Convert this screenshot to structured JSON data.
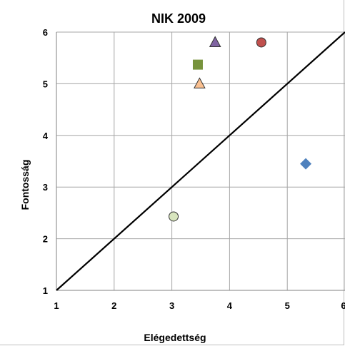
{
  "chart_data": {
    "type": "scatter",
    "title": "NIK 2009",
    "xlabel": "Elégedettség",
    "ylabel": "Fontosság",
    "xlim": [
      1,
      6
    ],
    "ylim": [
      1,
      6
    ],
    "xticks": [
      "1",
      "2",
      "3",
      "4",
      "5",
      "6"
    ],
    "yticks": [
      "1",
      "2",
      "3",
      "4",
      "5",
      "6"
    ],
    "grid": true,
    "points": [
      {
        "x": 5.32,
        "y": 3.45,
        "marker": "diamond",
        "color": "#4f81bd"
      },
      {
        "x": 4.55,
        "y": 5.8,
        "marker": "circle",
        "color": "#c0504d"
      },
      {
        "x": 3.45,
        "y": 5.37,
        "marker": "square",
        "color": "#77933c"
      },
      {
        "x": 3.75,
        "y": 5.8,
        "marker": "triangle",
        "color": "#8064a2"
      },
      {
        "x": 3.48,
        "y": 5.0,
        "marker": "triangle",
        "color": "#fac090"
      },
      {
        "x": 3.03,
        "y": 2.43,
        "marker": "circle",
        "color": "#d7e4bd"
      }
    ],
    "reference_line": {
      "from": [
        1,
        1
      ],
      "to": [
        6,
        6
      ],
      "color": "#000000"
    }
  }
}
